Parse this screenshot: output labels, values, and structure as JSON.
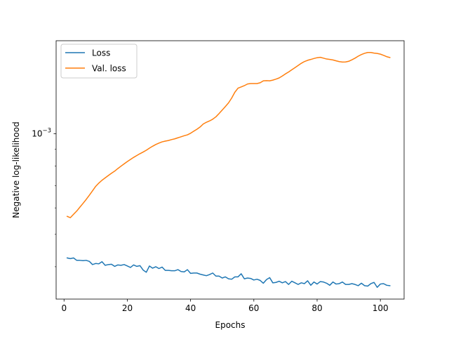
{
  "chart_data": {
    "type": "line",
    "title": "",
    "xlabel": "Epochs",
    "ylabel": "Negative log-likelihood",
    "xlim": [
      -2.5,
      107.5
    ],
    "ylim": [
      0.00032,
      0.0019
    ],
    "yscale": "log",
    "grid": false,
    "legend_position": "upper-left",
    "x_ticks": [
      0,
      20,
      40,
      60,
      80,
      100
    ],
    "x_tick_labels": [
      "0",
      "20",
      "40",
      "60",
      "80",
      "100"
    ],
    "y_ticks": [
      0.001
    ],
    "y_tick_labels": [
      {
        "base": "10",
        "exp": "−3"
      }
    ],
    "x": [
      1,
      2,
      3,
      4,
      5,
      6,
      7,
      8,
      9,
      10,
      11,
      12,
      13,
      14,
      15,
      16,
      17,
      18,
      19,
      20,
      21,
      22,
      23,
      24,
      25,
      26,
      27,
      28,
      29,
      30,
      31,
      32,
      33,
      34,
      35,
      36,
      37,
      38,
      39,
      40,
      41,
      42,
      43,
      44,
      45,
      46,
      47,
      48,
      49,
      50,
      51,
      52,
      53,
      54,
      55,
      56,
      57,
      58,
      59,
      60,
      61,
      62,
      63,
      64,
      65,
      66,
      67,
      68,
      69,
      70,
      71,
      72,
      73,
      74,
      75,
      76,
      77,
      78,
      79,
      80,
      81,
      82,
      83,
      84,
      85,
      86,
      87,
      88,
      89,
      90,
      91,
      92,
      93,
      94,
      95,
      96,
      97,
      98,
      99,
      100,
      101,
      102,
      103
    ],
    "series": [
      {
        "name": "Loss",
        "color": "#1f77b4",
        "values": [
          0.000425,
          0.000423,
          0.000425,
          0.000418,
          0.000418,
          0.000417,
          0.000418,
          0.000415,
          0.000406,
          0.000409,
          0.000408,
          0.000414,
          0.000404,
          0.000406,
          0.000407,
          0.000401,
          0.000405,
          0.000404,
          0.000406,
          0.000402,
          0.000398,
          0.000405,
          0.000401,
          0.000403,
          0.000391,
          0.000385,
          0.000402,
          0.000396,
          0.0004,
          0.000395,
          0.000399,
          0.00039,
          0.00039,
          0.000389,
          0.000389,
          0.000392,
          0.000387,
          0.000386,
          0.000392,
          0.000382,
          0.000383,
          0.000383,
          0.00038,
          0.000378,
          0.000376,
          0.000379,
          0.000383,
          0.000375,
          0.000375,
          0.00037,
          0.000373,
          0.000368,
          0.000367,
          0.000373,
          0.000373,
          0.000381,
          0.000368,
          0.00037,
          0.000369,
          0.000365,
          0.000367,
          0.000364,
          0.000357,
          0.000366,
          0.000371,
          0.000358,
          0.000359,
          0.000362,
          0.000358,
          0.000361,
          0.000354,
          0.000362,
          0.000358,
          0.000354,
          0.000358,
          0.000356,
          0.000363,
          0.000352,
          0.00036,
          0.000355,
          0.000361,
          0.00036,
          0.000357,
          0.000352,
          0.00036,
          0.000355,
          0.000356,
          0.00036,
          0.000354,
          0.000354,
          0.000356,
          0.000354,
          0.000351,
          0.000357,
          0.000351,
          0.00035,
          0.000356,
          0.000359,
          0.000347,
          0.000355,
          0.000356,
          0.000352,
          0.000351
        ]
      },
      {
        "name": "Val. loss",
        "color": "#ff7f0e",
        "values": [
          0.000566,
          0.000561,
          0.000574,
          0.000587,
          0.000603,
          0.000619,
          0.000636,
          0.000655,
          0.000675,
          0.000696,
          0.000712,
          0.000726,
          0.000738,
          0.00075,
          0.000762,
          0.000773,
          0.000787,
          0.0008,
          0.000813,
          0.000826,
          0.000838,
          0.00085,
          0.000861,
          0.000872,
          0.000882,
          0.000893,
          0.000906,
          0.000918,
          0.000929,
          0.000938,
          0.000946,
          0.000951,
          0.000955,
          0.000961,
          0.000966,
          0.000973,
          0.00098,
          0.000987,
          0.000993,
          0.001004,
          0.001018,
          0.001032,
          0.001048,
          0.00107,
          0.001083,
          0.001093,
          0.001106,
          0.001124,
          0.00115,
          0.001178,
          0.001207,
          0.001238,
          0.00128,
          0.001332,
          0.00137,
          0.001382,
          0.001394,
          0.00141,
          0.001414,
          0.001414,
          0.001414,
          0.001422,
          0.001441,
          0.001443,
          0.001441,
          0.001448,
          0.001458,
          0.00147,
          0.00149,
          0.001512,
          0.001532,
          0.001555,
          0.001578,
          0.001602,
          0.001626,
          0.001646,
          0.00166,
          0.00167,
          0.001681,
          0.00169,
          0.001695,
          0.001685,
          0.001675,
          0.00167,
          0.001664,
          0.001654,
          0.001645,
          0.00164,
          0.001641,
          0.001649,
          0.001666,
          0.001685,
          0.001708,
          0.001727,
          0.001742,
          0.001752,
          0.001752,
          0.001745,
          0.00174,
          0.001732,
          0.001718,
          0.001702,
          0.001692
        ]
      }
    ]
  }
}
